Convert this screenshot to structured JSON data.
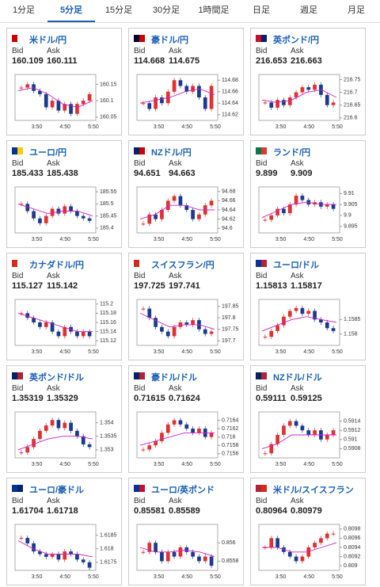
{
  "tabs": [
    "1分足",
    "5分足",
    "15分足",
    "30分足",
    "1時間足",
    "日足",
    "週足",
    "月足"
  ],
  "bid_label": "Bid",
  "ask_label": "Ask",
  "cards": [
    {
      "name": "米ドル/円",
      "bid": 160.109,
      "ask": 160.111,
      "ylim": [
        160.04,
        160.18
      ],
      "yticks": [
        160.15,
        160.1,
        160.05
      ],
      "xticks": [
        "3:50",
        "4:50",
        "5:50"
      ],
      "closes": [
        160.14,
        160.15,
        160.13,
        160.12,
        160.08,
        160.1,
        160.07,
        160.09,
        160.06,
        160.09,
        160.1,
        160.12
      ],
      "ma": [
        160.13,
        160.14,
        160.12,
        160.09,
        160.08,
        160.1
      ]
    },
    {
      "name": "豪ドル/円",
      "bid": 114.668,
      "ask": 114.675,
      "ylim": [
        114.61,
        114.69
      ],
      "yticks": [
        114.68,
        114.66,
        114.64,
        114.62
      ],
      "xticks": [
        "3:50",
        "4:50",
        "5:50"
      ],
      "closes": [
        114.64,
        114.63,
        114.65,
        114.64,
        114.66,
        114.68,
        114.67,
        114.66,
        114.67,
        114.65,
        114.63,
        114.67
      ],
      "ma": [
        114.64,
        114.645,
        114.65,
        114.66,
        114.665,
        114.655
      ]
    },
    {
      "name": "英ポンド/円",
      "bid": 216.653,
      "ask": 216.663,
      "ylim": [
        216.59,
        216.77
      ],
      "yticks": [
        216.75,
        216.7,
        216.65,
        216.6
      ],
      "xticks": [
        "3:50",
        "4:50",
        "5:50"
      ],
      "closes": [
        216.66,
        216.64,
        216.67,
        216.65,
        216.68,
        216.7,
        216.72,
        216.71,
        216.73,
        216.69,
        216.65,
        216.66
      ],
      "ma": [
        216.67,
        216.66,
        216.67,
        216.7,
        216.71,
        216.68
      ]
    },
    {
      "name": "ユーロ/円",
      "bid": 185.433,
      "ask": 185.438,
      "ylim": [
        185.38,
        185.57
      ],
      "yticks": [
        185.55,
        185.5,
        185.45,
        185.4
      ],
      "xticks": [
        "3:50",
        "4:50",
        "5:50"
      ],
      "closes": [
        185.5,
        185.47,
        185.44,
        185.42,
        185.45,
        185.48,
        185.46,
        185.49,
        185.47,
        185.45,
        185.44,
        185.43
      ],
      "ma": [
        185.5,
        185.48,
        185.46,
        185.47,
        185.47,
        185.45
      ]
    },
    {
      "name": "NZドル/円",
      "bid": 94.651,
      "ask": 94.663,
      "ylim": [
        94.59,
        94.69
      ],
      "yticks": [
        94.68,
        94.66,
        94.64,
        94.62,
        94.6
      ],
      "xticks": [
        "3:50",
        "4:50",
        "5:50"
      ],
      "closes": [
        94.61,
        94.63,
        94.62,
        94.64,
        94.66,
        94.67,
        94.65,
        94.64,
        94.62,
        94.63,
        94.65,
        94.66
      ],
      "ma": [
        94.62,
        94.63,
        94.65,
        94.65,
        94.64,
        94.64
      ]
    },
    {
      "name": "ランド/円",
      "bid": 9.899,
      "ask": 9.909,
      "ylim": [
        9.892,
        9.913
      ],
      "yticks": [
        9.91,
        9.905,
        9.9,
        9.895
      ],
      "xticks": [
        "3:50",
        "4:50",
        "5:50"
      ],
      "closes": [
        9.898,
        9.9,
        9.903,
        9.901,
        9.905,
        9.909,
        9.907,
        9.905,
        9.906,
        9.904,
        9.905,
        9.903
      ],
      "ma": [
        9.899,
        9.902,
        9.905,
        9.906,
        9.905,
        9.905
      ]
    },
    {
      "name": "カナダドル/円",
      "bid": 115.127,
      "ask": 115.142,
      "ylim": [
        115.11,
        115.21
      ],
      "yticks": [
        115.2,
        115.18,
        115.16,
        115.14,
        115.12
      ],
      "xticks": [
        "3:50",
        "4:50",
        "5:50"
      ],
      "closes": [
        115.18,
        115.17,
        115.16,
        115.15,
        115.16,
        115.14,
        115.13,
        115.15,
        115.14,
        115.13,
        115.14,
        115.13
      ],
      "ma": [
        115.18,
        115.17,
        115.16,
        115.15,
        115.14,
        115.14
      ]
    },
    {
      "name": "スイスフラン/円",
      "bid": 197.725,
      "ask": 197.741,
      "ylim": [
        197.68,
        197.88
      ],
      "yticks": [
        197.85,
        197.8,
        197.75,
        197.7
      ],
      "xticks": [
        "3:50",
        "4:50",
        "5:50"
      ],
      "closes": [
        197.84,
        197.8,
        197.76,
        197.74,
        197.72,
        197.76,
        197.78,
        197.77,
        197.79,
        197.75,
        197.73,
        197.74
      ],
      "ma": [
        197.82,
        197.79,
        197.76,
        197.77,
        197.77,
        197.75
      ]
    },
    {
      "name": "ユーロ/ドル",
      "bid": 1.15813,
      "ask": 1.15817,
      "ylim": [
        1.1576,
        1.1592
      ],
      "yticks": [
        1.1585,
        1.158
      ],
      "xticks": [
        "3:50",
        "4:50",
        "5:50"
      ],
      "closes": [
        1.1579,
        1.1581,
        1.1583,
        1.1586,
        1.1588,
        1.1589,
        1.1587,
        1.1588,
        1.1585,
        1.1584,
        1.1582,
        1.1581
      ],
      "ma": [
        1.1581,
        1.1583,
        1.1585,
        1.1586,
        1.1585,
        1.1584
      ]
    },
    {
      "name": "英ポンド/ドル",
      "bid": 1.35319,
      "ask": 1.35329,
      "ylim": [
        1.3527,
        1.3544
      ],
      "yticks": [
        1.354,
        1.3535,
        1.353
      ],
      "xticks": [
        "3:50",
        "4:50",
        "5:50"
      ],
      "closes": [
        1.3529,
        1.3531,
        1.3534,
        1.3537,
        1.3539,
        1.3541,
        1.3538,
        1.354,
        1.3537,
        1.3535,
        1.3532,
        1.3531
      ],
      "ma": [
        1.353,
        1.3532,
        1.3534,
        1.3535,
        1.3535,
        1.3534
      ]
    },
    {
      "name": "豪ドル/ドル",
      "bid": 0.71615,
      "ask": 0.71624,
      "ylim": [
        0.7155,
        0.7166
      ],
      "yticks": [
        0.7164,
        0.7162,
        0.716,
        0.7158,
        0.7156
      ],
      "xticks": [
        "3:50",
        "4:50",
        "5:50"
      ],
      "closes": [
        0.7157,
        0.7158,
        0.7159,
        0.7161,
        0.7163,
        0.7164,
        0.7163,
        0.7162,
        0.7161,
        0.7162,
        0.716,
        0.7161
      ],
      "ma": [
        0.7158,
        0.7159,
        0.716,
        0.7161,
        0.7161,
        0.7161
      ]
    },
    {
      "name": "NZドル/ドル",
      "bid": 0.59111,
      "ask": 0.59125,
      "ylim": [
        0.5906,
        0.5916
      ],
      "yticks": [
        0.5914,
        0.5912,
        0.591,
        0.5908
      ],
      "xticks": [
        "3:50",
        "4:50",
        "5:50"
      ],
      "closes": [
        0.5907,
        0.5909,
        0.5911,
        0.5913,
        0.5914,
        0.5913,
        0.5912,
        0.5911,
        0.5912,
        0.591,
        0.5911,
        0.5912
      ],
      "ma": [
        0.5908,
        0.5909,
        0.5911,
        0.5911,
        0.5911,
        0.5911
      ]
    },
    {
      "name": "ユーロ/豪ドル",
      "bid": 1.61704,
      "ask": 1.61718,
      "ylim": [
        1.6172,
        1.6189
      ],
      "yticks": [
        1.6185,
        1.618,
        1.6175
      ],
      "xticks": [
        "3:50",
        "4:50",
        "5:50"
      ],
      "closes": [
        1.6184,
        1.6182,
        1.6179,
        1.6178,
        1.6177,
        1.6178,
        1.6176,
        1.6179,
        1.6178,
        1.6176,
        1.6175,
        1.6173
      ],
      "ma": [
        1.6183,
        1.618,
        1.6178,
        1.6178,
        1.6178,
        1.6177
      ]
    },
    {
      "name": "ユーロ/英ポンド",
      "bid": 0.85581,
      "ask": 0.85589,
      "ylim": [
        0.8557,
        0.8562
      ],
      "yticks": [
        0.856,
        0.8558
      ],
      "xticks": [
        "3:50",
        "4:50",
        "5:50"
      ],
      "closes": [
        0.8559,
        0.856,
        0.8559,
        0.8558,
        0.8559,
        0.85585,
        0.85595,
        0.8559,
        0.85585,
        0.8558,
        0.85585,
        0.85575
      ],
      "ma": [
        0.85595,
        0.8559,
        0.8559,
        0.85592,
        0.8559,
        0.85585
      ]
    },
    {
      "name": "米ドル/スイスフラン",
      "bid": 0.80964,
      "ask": 0.80979,
      "ylim": [
        0.8089,
        0.8099
      ],
      "yticks": [
        0.8098,
        0.8096,
        0.8094,
        0.8092,
        0.809
      ],
      "xticks": [
        "3:50",
        "4:50",
        "5:50"
      ],
      "closes": [
        0.8094,
        0.8096,
        0.8094,
        0.8093,
        0.8092,
        0.8091,
        0.8092,
        0.8094,
        0.8095,
        0.8096,
        0.8097,
        0.8097
      ],
      "ma": [
        0.8094,
        0.8094,
        0.8093,
        0.8093,
        0.8094,
        0.8095
      ]
    }
  ]
}
